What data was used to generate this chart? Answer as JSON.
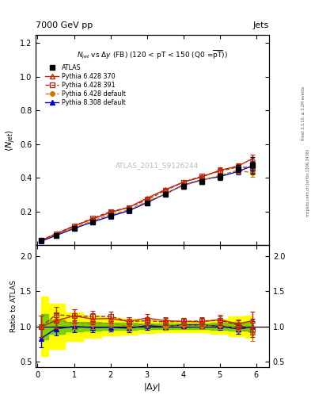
{
  "title_left": "7000 GeV pp",
  "title_right": "Jets",
  "plot_title": "N$_{jet}$ vs $\\Delta y$ (FB) (120 < pT < 150 (Q0 =$\\overline{pT}$))",
  "ylabel_main": "$\\langle N_{jet}\\rangle$",
  "ylabel_ratio": "Ratio to ATLAS",
  "xlabel": "$|\\Delta y|$",
  "watermark": "ATLAS_2011_S9126244",
  "right_label1": "Rivet 3.1.10, ≥ 3.2M events",
  "right_label2": "mcplots.cern.ch [arXiv:1306.3436]",
  "x_data": [
    0.1,
    0.5,
    1.0,
    1.5,
    2.0,
    2.5,
    3.0,
    3.5,
    4.0,
    4.5,
    5.0,
    5.5,
    5.9
  ],
  "atlas_y": [
    0.03,
    0.06,
    0.1,
    0.14,
    0.175,
    0.21,
    0.25,
    0.305,
    0.35,
    0.38,
    0.405,
    0.455,
    0.475
  ],
  "atlas_yerr": [
    0.004,
    0.005,
    0.007,
    0.008,
    0.008,
    0.009,
    0.01,
    0.011,
    0.013,
    0.014,
    0.018,
    0.022,
    0.05
  ],
  "py6_370_y": [
    0.03,
    0.065,
    0.115,
    0.155,
    0.195,
    0.225,
    0.28,
    0.33,
    0.375,
    0.405,
    0.445,
    0.47,
    0.515
  ],
  "py6_370_yerr": [
    0.002,
    0.003,
    0.005,
    0.006,
    0.007,
    0.008,
    0.009,
    0.01,
    0.011,
    0.013,
    0.016,
    0.018,
    0.022
  ],
  "py6_391_y": [
    0.03,
    0.07,
    0.115,
    0.16,
    0.2,
    0.225,
    0.27,
    0.325,
    0.375,
    0.41,
    0.44,
    0.465,
    0.46
  ],
  "py6_391_yerr": [
    0.002,
    0.003,
    0.005,
    0.006,
    0.007,
    0.008,
    0.009,
    0.01,
    0.011,
    0.013,
    0.016,
    0.018,
    0.022
  ],
  "py6_def_y": [
    0.03,
    0.065,
    0.105,
    0.145,
    0.183,
    0.21,
    0.26,
    0.305,
    0.355,
    0.385,
    0.415,
    0.445,
    0.43
  ],
  "py6_def_yerr": [
    0.002,
    0.003,
    0.005,
    0.006,
    0.007,
    0.008,
    0.009,
    0.01,
    0.011,
    0.013,
    0.016,
    0.018,
    0.022
  ],
  "py8_def_y": [
    0.025,
    0.058,
    0.1,
    0.138,
    0.173,
    0.205,
    0.253,
    0.305,
    0.358,
    0.388,
    0.408,
    0.438,
    0.472
  ],
  "py8_def_yerr": [
    0.002,
    0.003,
    0.005,
    0.006,
    0.007,
    0.008,
    0.009,
    0.01,
    0.011,
    0.013,
    0.016,
    0.018,
    0.022
  ],
  "yellow_band_x": [
    0.1,
    0.5,
    1.0,
    1.5,
    2.0,
    2.5,
    3.0,
    3.5,
    4.0,
    4.5,
    5.0,
    5.5,
    5.9
  ],
  "yellow_band_lo": [
    0.58,
    0.68,
    0.8,
    0.84,
    0.87,
    0.89,
    0.91,
    0.92,
    0.92,
    0.92,
    0.9,
    0.86,
    0.84
  ],
  "yellow_band_hi": [
    1.42,
    1.32,
    1.2,
    1.16,
    1.13,
    1.11,
    1.09,
    1.08,
    1.08,
    1.08,
    1.1,
    1.14,
    1.16
  ],
  "green_band_x": [
    0.1,
    0.5,
    1.0,
    1.5,
    2.0,
    2.5,
    3.0,
    3.5,
    4.0,
    4.5,
    5.0,
    5.5,
    5.9
  ],
  "green_band_lo": [
    0.82,
    0.9,
    0.93,
    0.94,
    0.95,
    0.95,
    0.96,
    0.96,
    0.96,
    0.96,
    0.95,
    0.94,
    0.94
  ],
  "green_band_hi": [
    1.18,
    1.1,
    1.07,
    1.06,
    1.05,
    1.05,
    1.04,
    1.04,
    1.04,
    1.04,
    1.05,
    1.06,
    1.06
  ],
  "color_py6_370": "#cc2200",
  "color_py6_391": "#993322",
  "color_py6_def": "#cc7700",
  "color_py8_def": "#0000cc",
  "color_atlas": "#000000",
  "main_ylim": [
    0.0,
    1.25
  ],
  "main_yticks": [
    0.2,
    0.4,
    0.6,
    0.8,
    1.0,
    1.2
  ],
  "ratio_ylim": [
    0.42,
    2.15
  ],
  "ratio_yticks": [
    0.5,
    1.0,
    1.5,
    2.0
  ],
  "xlim": [
    -0.05,
    6.35
  ],
  "xticks": [
    0,
    1,
    2,
    3,
    4,
    5,
    6
  ]
}
